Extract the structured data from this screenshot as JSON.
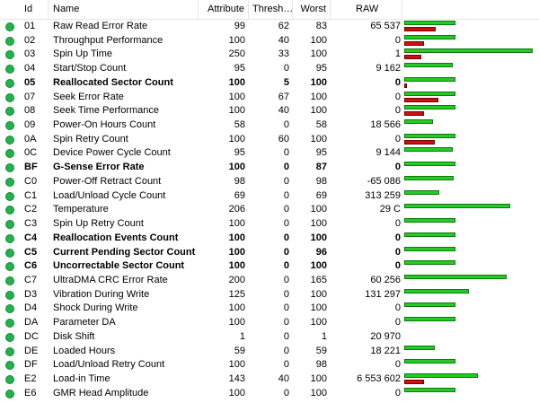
{
  "columns": {
    "id": "Id",
    "name": "Name",
    "attribute": "Attribute",
    "threshold": "Thresh…",
    "worst": "Worst",
    "raw": "RAW"
  },
  "status_icon": "green-status-dot-icon",
  "colors": {
    "good_bar": "#22cc22",
    "warn_bar": "#cc1111",
    "status_dot": "#22b14c"
  },
  "rows": [
    {
      "id": "01",
      "name": "Raw Read Error Rate",
      "attr": "99",
      "thresh": "62",
      "worst": "83",
      "raw": "65 537",
      "bold": false,
      "green_fill": 0.39,
      "red_fill": 0.24
    },
    {
      "id": "02",
      "name": "Throughput Performance",
      "attr": "100",
      "thresh": "40",
      "worst": "100",
      "raw": "0",
      "bold": false,
      "green_fill": 0.39,
      "red_fill": 0.15
    },
    {
      "id": "03",
      "name": "Spin Up Time",
      "attr": "250",
      "thresh": "33",
      "worst": "100",
      "raw": "1",
      "bold": false,
      "green_fill": 0.98,
      "red_fill": 0.13
    },
    {
      "id": "04",
      "name": "Start/Stop Count",
      "attr": "95",
      "thresh": "0",
      "worst": "95",
      "raw": "9 162",
      "bold": false,
      "green_fill": 0.37,
      "red_fill": 0
    },
    {
      "id": "05",
      "name": "Reallocated Sector Count",
      "attr": "100",
      "thresh": "5",
      "worst": "100",
      "raw": "0",
      "bold": true,
      "green_fill": 0.39,
      "red_fill": 0.02
    },
    {
      "id": "07",
      "name": "Seek Error Rate",
      "attr": "100",
      "thresh": "67",
      "worst": "100",
      "raw": "0",
      "bold": false,
      "green_fill": 0.39,
      "red_fill": 0.26
    },
    {
      "id": "08",
      "name": "Seek Time Performance",
      "attr": "100",
      "thresh": "40",
      "worst": "100",
      "raw": "0",
      "bold": false,
      "green_fill": 0.39,
      "red_fill": 0.15
    },
    {
      "id": "09",
      "name": "Power-On Hours Count",
      "attr": "58",
      "thresh": "0",
      "worst": "58",
      "raw": "18 566",
      "bold": false,
      "green_fill": 0.22,
      "red_fill": 0
    },
    {
      "id": "0A",
      "name": "Spin Retry Count",
      "attr": "100",
      "thresh": "60",
      "worst": "100",
      "raw": "0",
      "bold": false,
      "green_fill": 0.39,
      "red_fill": 0.23
    },
    {
      "id": "0C",
      "name": "Device Power Cycle Count",
      "attr": "95",
      "thresh": "0",
      "worst": "95",
      "raw": "9 144",
      "bold": false,
      "green_fill": 0.37,
      "red_fill": 0
    },
    {
      "id": "BF",
      "name": "G-Sense Error Rate",
      "attr": "100",
      "thresh": "0",
      "worst": "87",
      "raw": "0",
      "bold": true,
      "green_fill": 0.39,
      "red_fill": 0
    },
    {
      "id": "C0",
      "name": "Power-Off Retract Count",
      "attr": "98",
      "thresh": "0",
      "worst": "98",
      "raw": "-65 086",
      "bold": false,
      "green_fill": 0.38,
      "red_fill": 0
    },
    {
      "id": "C1",
      "name": "Load/Unload Cycle Count",
      "attr": "69",
      "thresh": "0",
      "worst": "69",
      "raw": "313 259",
      "bold": false,
      "green_fill": 0.27,
      "red_fill": 0
    },
    {
      "id": "C2",
      "name": "Temperature",
      "attr": "206",
      "thresh": "0",
      "worst": "100",
      "raw": "29 C",
      "bold": false,
      "green_fill": 0.81,
      "red_fill": 0
    },
    {
      "id": "C3",
      "name": "Spin Up Retry Count",
      "attr": "100",
      "thresh": "0",
      "worst": "100",
      "raw": "0",
      "bold": false,
      "green_fill": 0.39,
      "red_fill": 0
    },
    {
      "id": "C4",
      "name": "Reallocation Events Count",
      "attr": "100",
      "thresh": "0",
      "worst": "100",
      "raw": "0",
      "bold": true,
      "green_fill": 0.39,
      "red_fill": 0
    },
    {
      "id": "C5",
      "name": "Current Pending Sector Count",
      "attr": "100",
      "thresh": "0",
      "worst": "96",
      "raw": "0",
      "bold": true,
      "green_fill": 0.39,
      "red_fill": 0
    },
    {
      "id": "C6",
      "name": "Uncorrectable Sector Count",
      "attr": "100",
      "thresh": "0",
      "worst": "100",
      "raw": "0",
      "bold": true,
      "green_fill": 0.39,
      "red_fill": 0
    },
    {
      "id": "C7",
      "name": "UltraDMA CRC Error Rate",
      "attr": "200",
      "thresh": "0",
      "worst": "165",
      "raw": "60 256",
      "bold": false,
      "green_fill": 0.78,
      "red_fill": 0
    },
    {
      "id": "D3",
      "name": "Vibration During Write",
      "attr": "125",
      "thresh": "0",
      "worst": "100",
      "raw": "131 297",
      "bold": false,
      "green_fill": 0.49,
      "red_fill": 0
    },
    {
      "id": "D4",
      "name": "Shock During Write",
      "attr": "100",
      "thresh": "0",
      "worst": "100",
      "raw": "0",
      "bold": false,
      "green_fill": 0.39,
      "red_fill": 0
    },
    {
      "id": "DA",
      "name": "Parameter DA",
      "attr": "100",
      "thresh": "0",
      "worst": "100",
      "raw": "0",
      "bold": false,
      "green_fill": 0.39,
      "red_fill": 0
    },
    {
      "id": "DC",
      "name": "Disk Shift",
      "attr": "1",
      "thresh": "0",
      "worst": "1",
      "raw": "20 970",
      "bold": false,
      "green_fill": 0,
      "red_fill": 0
    },
    {
      "id": "DE",
      "name": "Loaded Hours",
      "attr": "59",
      "thresh": "0",
      "worst": "59",
      "raw": "18 221",
      "bold": false,
      "green_fill": 0.23,
      "red_fill": 0
    },
    {
      "id": "DF",
      "name": "Load/Unload Retry Count",
      "attr": "100",
      "thresh": "0",
      "worst": "98",
      "raw": "0",
      "bold": false,
      "green_fill": 0.39,
      "red_fill": 0
    },
    {
      "id": "E2",
      "name": "Load-in Time",
      "attr": "143",
      "thresh": "40",
      "worst": "100",
      "raw": "6 553 602",
      "bold": false,
      "green_fill": 0.56,
      "red_fill": 0.15
    },
    {
      "id": "E6",
      "name": "GMR Head Amplitude",
      "attr": "100",
      "thresh": "0",
      "worst": "100",
      "raw": "0",
      "bold": false,
      "green_fill": 0.39,
      "red_fill": 0
    }
  ]
}
